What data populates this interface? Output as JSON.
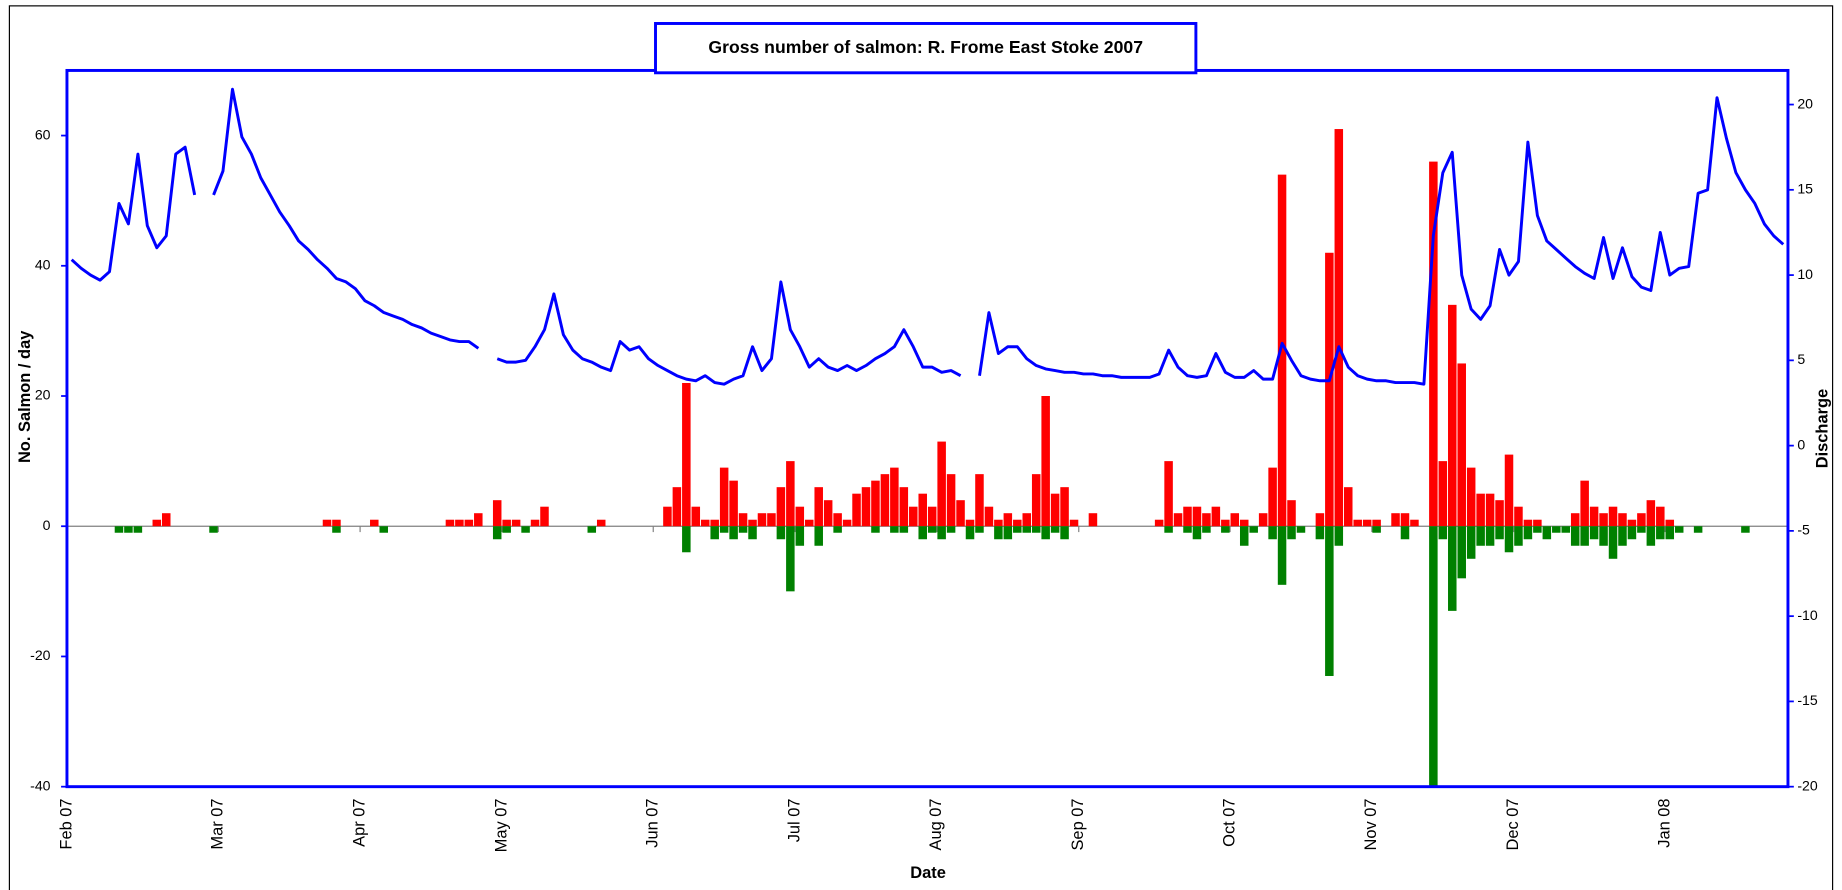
{
  "chart_data": {
    "type": "combo",
    "title": "Gross number of salmon: R. Frome East Stoke 2007",
    "xlabel": "Date",
    "ylabel": "No. Salmon / day",
    "y2label": "Discharge",
    "categories": [
      "Feb 07",
      null,
      null,
      null,
      null,
      null,
      null,
      null,
      null,
      null,
      null,
      null,
      null,
      null,
      null,
      null,
      "Mar 07",
      null,
      null,
      null,
      null,
      null,
      null,
      null,
      null,
      null,
      null,
      null,
      null,
      null,
      null,
      "Apr 07",
      null,
      null,
      null,
      null,
      null,
      null,
      null,
      null,
      null,
      null,
      null,
      null,
      null,
      null,
      "May 07",
      null,
      null,
      null,
      null,
      null,
      null,
      null,
      null,
      null,
      null,
      null,
      null,
      null,
      null,
      null,
      "Jun 07",
      null,
      null,
      null,
      null,
      null,
      null,
      null,
      null,
      null,
      null,
      null,
      null,
      null,
      null,
      "Jul 07",
      null,
      null,
      null,
      null,
      null,
      null,
      null,
      null,
      null,
      null,
      null,
      null,
      null,
      null,
      "Aug 07",
      null,
      null,
      null,
      null,
      null,
      null,
      null,
      null,
      null,
      null,
      null,
      null,
      null,
      null,
      "Sep 07",
      null,
      null,
      null,
      null,
      null,
      null,
      null,
      null,
      null,
      null,
      null,
      null,
      null,
      null,
      null,
      "Oct 07",
      null,
      null,
      null,
      null,
      null,
      null,
      null,
      null,
      null,
      null,
      null,
      null,
      null,
      null,
      "Nov 07",
      null,
      null,
      null,
      null,
      null,
      null,
      null,
      null,
      null,
      null,
      null,
      null,
      null,
      null,
      "Dec 07",
      null,
      null,
      null,
      null,
      null,
      null,
      null,
      null,
      null,
      null,
      null,
      null,
      null,
      null,
      null,
      "Jan 08",
      null,
      null,
      null,
      null,
      null,
      null,
      null,
      null,
      null,
      null,
      null,
      null
    ],
    "series": [
      {
        "type": "bar",
        "color": "#ff0000",
        "values": [
          0,
          0,
          0,
          0,
          0,
          0,
          0,
          0,
          0,
          1,
          2,
          0,
          0,
          0,
          0,
          0,
          0,
          0,
          0,
          0,
          0,
          0,
          0,
          0,
          0,
          0,
          0,
          1,
          1,
          0,
          0,
          0,
          1,
          0,
          0,
          0,
          0,
          0,
          0,
          0,
          1,
          1,
          1,
          2,
          0,
          4,
          1,
          1,
          0,
          1,
          3,
          0,
          0,
          0,
          0,
          0,
          1,
          0,
          0,
          0,
          0,
          0,
          0,
          3,
          6,
          22,
          3,
          1,
          1,
          9,
          7,
          2,
          1,
          2,
          2,
          6,
          10,
          3,
          1,
          6,
          4,
          2,
          1,
          5,
          6,
          7,
          8,
          9,
          6,
          3,
          5,
          3,
          13,
          8,
          4,
          1,
          8,
          3,
          1,
          2,
          1,
          2,
          8,
          20,
          5,
          6,
          1,
          0,
          2,
          0,
          0,
          0,
          0,
          0,
          0,
          1,
          10,
          2,
          3,
          3,
          2,
          3,
          1,
          2,
          1,
          0,
          2,
          9,
          54,
          4,
          0,
          0,
          2,
          42,
          61,
          6,
          1,
          1,
          1,
          0,
          2,
          2,
          1,
          0,
          56,
          10,
          34,
          25,
          9,
          5,
          5,
          4,
          11,
          3,
          1,
          1,
          0,
          0,
          0,
          2,
          7,
          3,
          2,
          3,
          2,
          1,
          2,
          4,
          3,
          1,
          0,
          0,
          0,
          0,
          0,
          0,
          0,
          0,
          0,
          0,
          0,
          0
        ]
      },
      {
        "type": "bar",
        "color": "#008000",
        "values": [
          0,
          0,
          0,
          0,
          0,
          -1,
          -1,
          -1,
          0,
          0,
          0,
          0,
          0,
          0,
          0,
          -1,
          0,
          0,
          0,
          0,
          0,
          0,
          0,
          0,
          0,
          0,
          0,
          0,
          -1,
          0,
          0,
          0,
          0,
          -1,
          0,
          0,
          0,
          0,
          0,
          0,
          0,
          0,
          0,
          0,
          0,
          -2,
          -1,
          0,
          -1,
          0,
          0,
          0,
          0,
          0,
          0,
          -1,
          0,
          0,
          0,
          0,
          0,
          0,
          0,
          0,
          0,
          -4,
          0,
          0,
          -2,
          -1,
          -2,
          -1,
          -2,
          0,
          0,
          -2,
          -10,
          -3,
          0,
          -3,
          0,
          -1,
          0,
          0,
          0,
          -1,
          0,
          -1,
          -1,
          0,
          -2,
          -1,
          -2,
          -1,
          0,
          -2,
          -1,
          0,
          -2,
          -2,
          -1,
          -1,
          -1,
          -2,
          -1,
          -2,
          0,
          0,
          0,
          0,
          0,
          0,
          0,
          0,
          0,
          0,
          -1,
          0,
          -1,
          -2,
          -1,
          0,
          -1,
          0,
          -3,
          -1,
          0,
          -2,
          -9,
          -2,
          -1,
          0,
          -2,
          -23,
          -3,
          0,
          0,
          0,
          -1,
          0,
          0,
          -2,
          0,
          0,
          -40,
          -2,
          -13,
          -8,
          -5,
          -3,
          -3,
          -2,
          -4,
          -3,
          -2,
          -1,
          -2,
          -1,
          -1,
          -3,
          -3,
          -2,
          -3,
          -5,
          -3,
          -2,
          -1,
          -3,
          -2,
          -2,
          -1,
          0,
          -1,
          0,
          0,
          0,
          0,
          -1,
          0,
          0,
          0,
          0
        ]
      },
      {
        "type": "line",
        "axis": "y2",
        "color": "#0000ff",
        "values": [
          10.9,
          10.4,
          10.0,
          9.7,
          10.2,
          14.2,
          13.0,
          17.1,
          12.9,
          11.6,
          12.3,
          17.1,
          17.5,
          14.7,
          null,
          14.7,
          16.1,
          20.9,
          18.1,
          17.1,
          15.7,
          14.7,
          13.7,
          12.9,
          12.0,
          11.5,
          10.9,
          10.4,
          9.8,
          9.6,
          9.2,
          8.5,
          8.2,
          7.8,
          7.6,
          7.4,
          7.1,
          6.9,
          6.6,
          6.4,
          6.2,
          6.1,
          6.1,
          5.7,
          null,
          5.1,
          4.9,
          4.9,
          5.0,
          5.8,
          6.8,
          8.9,
          6.5,
          5.6,
          5.1,
          4.9,
          4.6,
          4.4,
          6.1,
          5.6,
          5.8,
          5.1,
          4.7,
          4.4,
          4.1,
          3.9,
          3.8,
          4.1,
          3.7,
          3.6,
          3.9,
          4.1,
          5.8,
          4.4,
          5.1,
          9.6,
          6.8,
          5.8,
          4.6,
          5.1,
          4.6,
          4.4,
          4.7,
          4.4,
          4.7,
          5.1,
          5.4,
          5.8,
          6.8,
          5.8,
          4.6,
          4.6,
          4.3,
          4.4,
          4.1,
          null,
          4.1,
          7.8,
          5.4,
          5.8,
          5.8,
          5.1,
          4.7,
          4.5,
          4.4,
          4.3,
          4.3,
          4.2,
          4.2,
          4.1,
          4.1,
          4.0,
          4.0,
          4.0,
          4.0,
          4.2,
          5.6,
          4.6,
          4.1,
          4.0,
          4.1,
          5.4,
          4.3,
          4.0,
          4.0,
          4.4,
          3.9,
          3.9,
          6.0,
          5.0,
          4.1,
          3.9,
          3.8,
          3.8,
          5.8,
          4.6,
          4.1,
          3.9,
          3.8,
          3.8,
          3.7,
          3.7,
          3.7,
          3.6,
          12.3,
          16.0,
          17.2,
          10.0,
          8.0,
          7.4,
          8.2,
          11.5,
          10.0,
          10.8,
          17.8,
          13.5,
          12.0,
          11.5,
          11.0,
          10.5,
          10.1,
          9.8,
          12.2,
          9.8,
          11.6,
          9.9,
          9.3,
          9.1,
          12.5,
          10.0,
          10.4,
          10.5,
          14.8,
          15.0,
          20.4,
          18.0,
          16.0,
          15.0,
          14.2,
          13.0,
          12.3,
          11.8
        ]
      }
    ],
    "ylim": [
      -40,
      70
    ],
    "yticks": [
      -40,
      -20,
      0,
      20,
      40,
      60
    ],
    "y2lim": [
      -20,
      22
    ],
    "y2ticks": [
      -20,
      -15,
      -10,
      -5,
      0,
      5,
      10,
      15,
      20
    ]
  }
}
